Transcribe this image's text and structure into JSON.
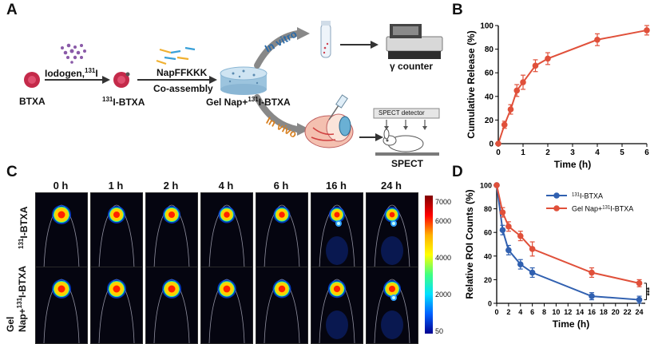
{
  "panels": {
    "a": "A",
    "b": "B",
    "c": "C",
    "d": "D"
  },
  "schematic": {
    "btxa": "BTXA",
    "iodogen_label": "Iodogen,",
    "iodogen_sup": "131",
    "iodogen_tail": "I",
    "labeled_sup": "131",
    "labeled_name": "I-BTXA",
    "peptide": "NapFFKKK",
    "assembly": "Co-assembly",
    "gel_prefix": "Gel Nap+",
    "gel_sup": "131",
    "gel_tail": "I-BTXA",
    "in_vitro": "In vitro",
    "in_vivo": "In vivo",
    "gamma": "γ counter",
    "spect_detector": "SPECT detector",
    "spect": "SPECT"
  },
  "imaging": {
    "timepoints": [
      "0 h",
      "1 h",
      "2 h",
      "4 h",
      "6 h",
      "16 h",
      "24 h"
    ],
    "row1_sup": "131",
    "row1_tail": "I-BTXA",
    "row2_line1": "Gel",
    "row2_prefix": "Nap+",
    "row2_sup": "131",
    "row2_tail": "I-BTXA",
    "colorbar_ticks": [
      "7000",
      "6000",
      "4000",
      "2000",
      "50"
    ],
    "colors": {
      "high": "#c00000",
      "low": "#1a1a8c"
    }
  },
  "chart_data": [
    {
      "type": "line",
      "title": "",
      "xlabel": "Time (h)",
      "ylabel": "Cumulative Release (%)",
      "xlim": [
        0,
        6
      ],
      "ylim": [
        0,
        100
      ],
      "xticks": [
        "0",
        "1",
        "2",
        "3",
        "4",
        "5",
        "6"
      ],
      "yticks": [
        "0",
        "20",
        "40",
        "60",
        "80",
        "100"
      ],
      "series": [
        {
          "name": "",
          "color": "#e0503a",
          "x": [
            0,
            0.25,
            0.5,
            0.75,
            1,
            1.5,
            2,
            4,
            6
          ],
          "y": [
            0,
            16,
            29,
            45,
            52,
            66,
            72,
            88,
            96
          ],
          "err": [
            0,
            3,
            4,
            5,
            6,
            5,
            5,
            5,
            4
          ]
        }
      ]
    },
    {
      "type": "line",
      "title": "",
      "xlabel": "Time (h)",
      "ylabel": "Relative ROI Counts (%)",
      "xlim": [
        0,
        25
      ],
      "ylim": [
        0,
        100
      ],
      "xticks": [
        "0",
        "2",
        "4",
        "6",
        "8",
        "10",
        "12",
        "14",
        "16",
        "18",
        "20",
        "22",
        "24"
      ],
      "yticks": [
        "0",
        "20",
        "40",
        "60",
        "80",
        "100"
      ],
      "significance": "***",
      "series": [
        {
          "name_sup": "131",
          "name": "I-BTXA",
          "color": "#3060b0",
          "x": [
            0,
            1,
            2,
            4,
            6,
            16,
            24
          ],
          "y": [
            100,
            62,
            45,
            33,
            26,
            6,
            3
          ],
          "err": [
            0,
            4,
            4,
            4,
            4,
            3,
            3
          ]
        },
        {
          "name_prefix": "Gel Nap+",
          "name_sup": "131",
          "name": "I-BTXA",
          "color": "#e0503a",
          "x": [
            0,
            1,
            2,
            4,
            6,
            16,
            24
          ],
          "y": [
            100,
            77,
            65,
            57,
            46,
            26,
            17
          ],
          "err": [
            0,
            4,
            4,
            4,
            6,
            4,
            3
          ]
        }
      ]
    }
  ]
}
